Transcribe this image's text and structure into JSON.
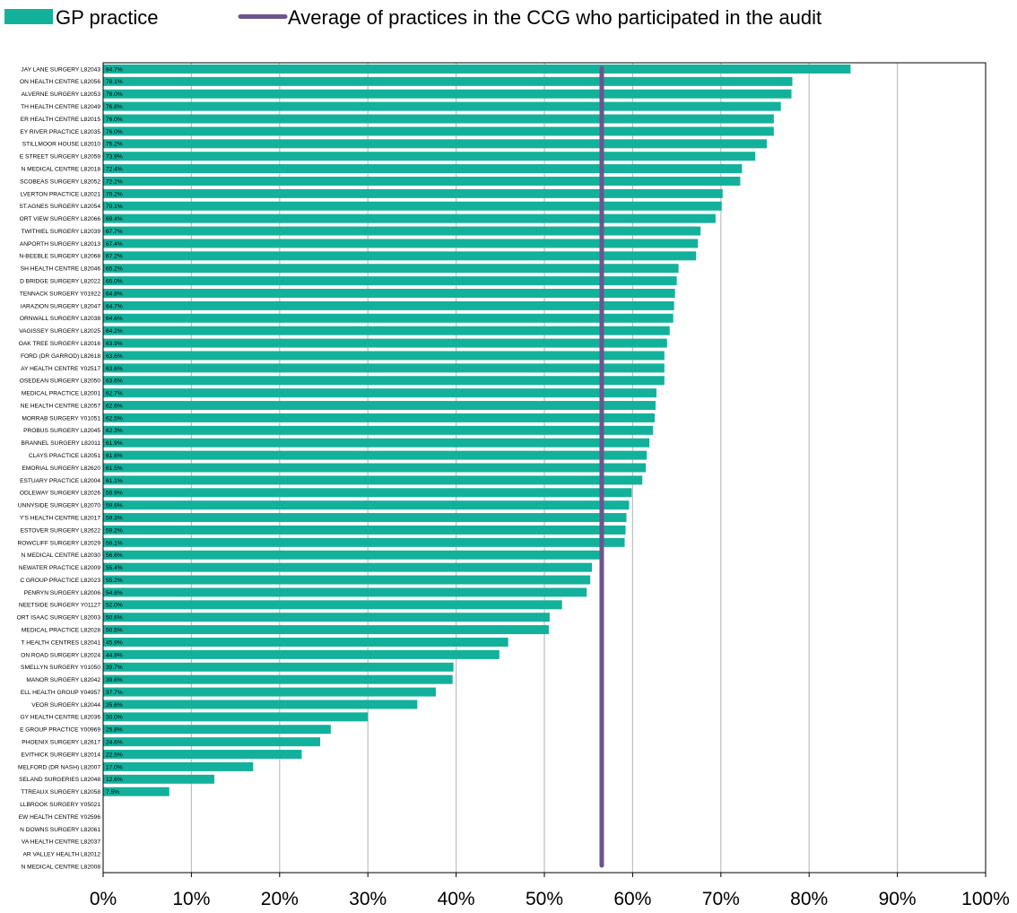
{
  "chart_data": {
    "type": "bar",
    "orientation": "horizontal",
    "xlim": [
      0,
      100
    ],
    "x_ticks": [
      "0%",
      "10%",
      "20%",
      "30%",
      "40%",
      "50%",
      "60%",
      "70%",
      "80%",
      "90%",
      "100%"
    ],
    "grid": "vertical",
    "legend_position": "top",
    "legend": [
      {
        "name": "GP practice",
        "kind": "bar",
        "color": "#13B19C"
      },
      {
        "name": "Average of practices in the CCG who participated in the audit",
        "kind": "line",
        "color": "#6E548C"
      }
    ],
    "average_value": 56.5,
    "categories": [
      "JAY LANE SURGERY L82043",
      "ON HEALTH CENTRE L82056",
      "ALVERNE SURGERY L82053",
      "TH HEALTH CENTRE L82049",
      "ER HEALTH CENTRE L82015",
      "EY RIVER PRACTICE L82035",
      "STILLMOOR HOUSE L82010",
      "E STREET SURGERY L82059",
      "N MEDICAL CENTRE L82018",
      "SCOBEAS SURGERY L82052",
      "LVERTON PRACTICE L82021",
      "ST.AGNES SURGERY L82054",
      "ORT VIEW SURGERY L82066",
      "TWITHIEL SURGERY L82039",
      "ANPORTH SURGERY L82013",
      "N-BEEBLE SURGERY L82068",
      "SH HEALTH CENTRE L82046",
      "D BRIDGE SURGERY L82022",
      "TENNACK SURGERY Y01922",
      "IARAZION SURGERY L82047",
      "ORNWALL SURGERY L82038",
      "VAGISSEY SURGERY L82025",
      "OAK TREE SURGERY L82016",
      "FORD (DR GARROD) L82618",
      "AY HEALTH CENTRE Y02517",
      "OSEDEAN SURGERY L82050",
      "MEDICAL PRACTICE L82001",
      "NE HEALTH CENTRE L82057",
      "MORRAB SURGERY Y01051",
      "PROBUS SURGERY L82045",
      "BRANNEL SURGERY L82011",
      "CLAYS PRACTICE L82051",
      "EMORIAL SURGERY L82620",
      "ESTUARY PRACTICE L82004",
      "ODLEWAY SURGERY L82026",
      "UNNYSIDE SURGERY L82070",
      "Y'S HEALTH CENTRE L82017",
      "ESTOVER SURGERY L82622",
      "ROWCLIFF SURGERY L82029",
      "N MEDICAL CENTRE L82030",
      "NEWATER PRACTICE L82009",
      "C GROUP PRACTICE L82023",
      "PENRYN SURGERY L82006",
      "NEETSIDE SURGERY Y01127",
      "ORT ISAAC SURGERY L82003",
      "MEDICAL PRACTICE L82028",
      "T HEALTH CENTRES L82041",
      "ON ROAD SURGERY L82024",
      "SMELLYN SURGERY Y01050",
      "MANOR SURGERY L82042",
      "ELL HEALTH GROUP Y04957",
      "VEOR SURGERY L82044",
      "GY HEALTH CENTRE L82036",
      "E GROUP PRACTICE Y00969",
      "PHOENIX SURGERY L82617",
      "EVITHICK SURGERY L82014",
      "MELFORD (DR NASH) L82007",
      "SELAND SURGERIES L82048",
      "TTREAUX SURGERY L82058",
      "LLBROOK SURGERY Y05021",
      "EW HEALTH CENTRE Y02596",
      "N DOWNS SURGERY L82061",
      "VA HEALTH CENTRE L82037",
      "AR VALLEY HEALTH L82012",
      "N MEDICAL CENTRE L82008"
    ],
    "values": [
      84.7,
      78.1,
      78.0,
      76.8,
      76.0,
      76.0,
      75.2,
      73.9,
      72.4,
      72.2,
      70.2,
      70.1,
      69.4,
      67.7,
      67.4,
      67.2,
      65.2,
      65.0,
      64.8,
      64.7,
      64.6,
      64.2,
      63.9,
      63.6,
      63.6,
      63.6,
      62.7,
      62.6,
      62.5,
      62.3,
      61.9,
      61.6,
      61.5,
      61.1,
      59.9,
      59.6,
      59.3,
      59.2,
      59.1,
      56.6,
      55.4,
      55.2,
      54.8,
      52.0,
      50.6,
      50.5,
      45.9,
      44.9,
      39.7,
      39.6,
      37.7,
      35.6,
      30.0,
      25.8,
      24.6,
      22.5,
      17.0,
      12.6,
      7.5,
      null,
      null,
      null,
      null,
      null,
      null
    ],
    "value_labels": [
      "84.7%",
      "78.1%",
      "78.0%",
      "76.8%",
      "76.0%",
      "76.0%",
      "75.2%",
      "73.9%",
      "72.4%",
      "72.2%",
      "70.2%",
      "70.1%",
      "69.4%",
      "67.7%",
      "67.4%",
      "67.2%",
      "65.2%",
      "65.0%",
      "64.8%",
      "64.7%",
      "64.6%",
      "64.2%",
      "63.9%",
      "63.6%",
      "63.6%",
      "63.6%",
      "62.7%",
      "62.6%",
      "62.5%",
      "62.3%",
      "61.9%",
      "61.6%",
      "61.5%",
      "61.1%",
      "59.9%",
      "59.6%",
      "59.3%",
      "59.2%",
      "59.1%",
      "56.6%",
      "55.4%",
      "55.2%",
      "54.8%",
      "52.0%",
      "50.6%",
      "50.5%",
      "45.9%",
      "44.9%",
      "39.7%",
      "39.6%",
      "37.7%",
      "35.6%",
      "30.0%",
      "25.8%",
      "24.6%",
      "22.5%",
      "17.0%",
      "12.6%",
      "7.5%",
      "",
      "",
      "",
      "",
      "",
      ""
    ]
  }
}
